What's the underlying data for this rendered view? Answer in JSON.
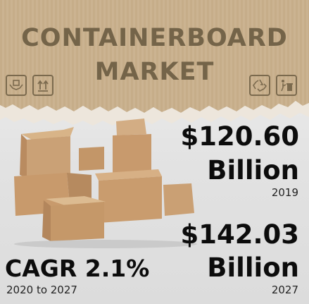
{
  "title": {
    "line1": "CONTAINERBOARD",
    "line2": "MARKET"
  },
  "stats": {
    "value_2019": "$120.60",
    "unit_2019": "Billion",
    "year_2019": "2019",
    "value_2027": "$142.03",
    "unit_2027": "Billion",
    "year_2027": "2027"
  },
  "cagr": {
    "label": "CAGR 2.1%",
    "range": "2020 to 2027"
  },
  "icons": [
    "hands-box-icon",
    "this-way-up-icon",
    "recycle-icon",
    "dispose-bin-icon"
  ],
  "colors": {
    "cardboard": "#c9b08d",
    "title": "#746449",
    "text": "#0c0c0c"
  }
}
